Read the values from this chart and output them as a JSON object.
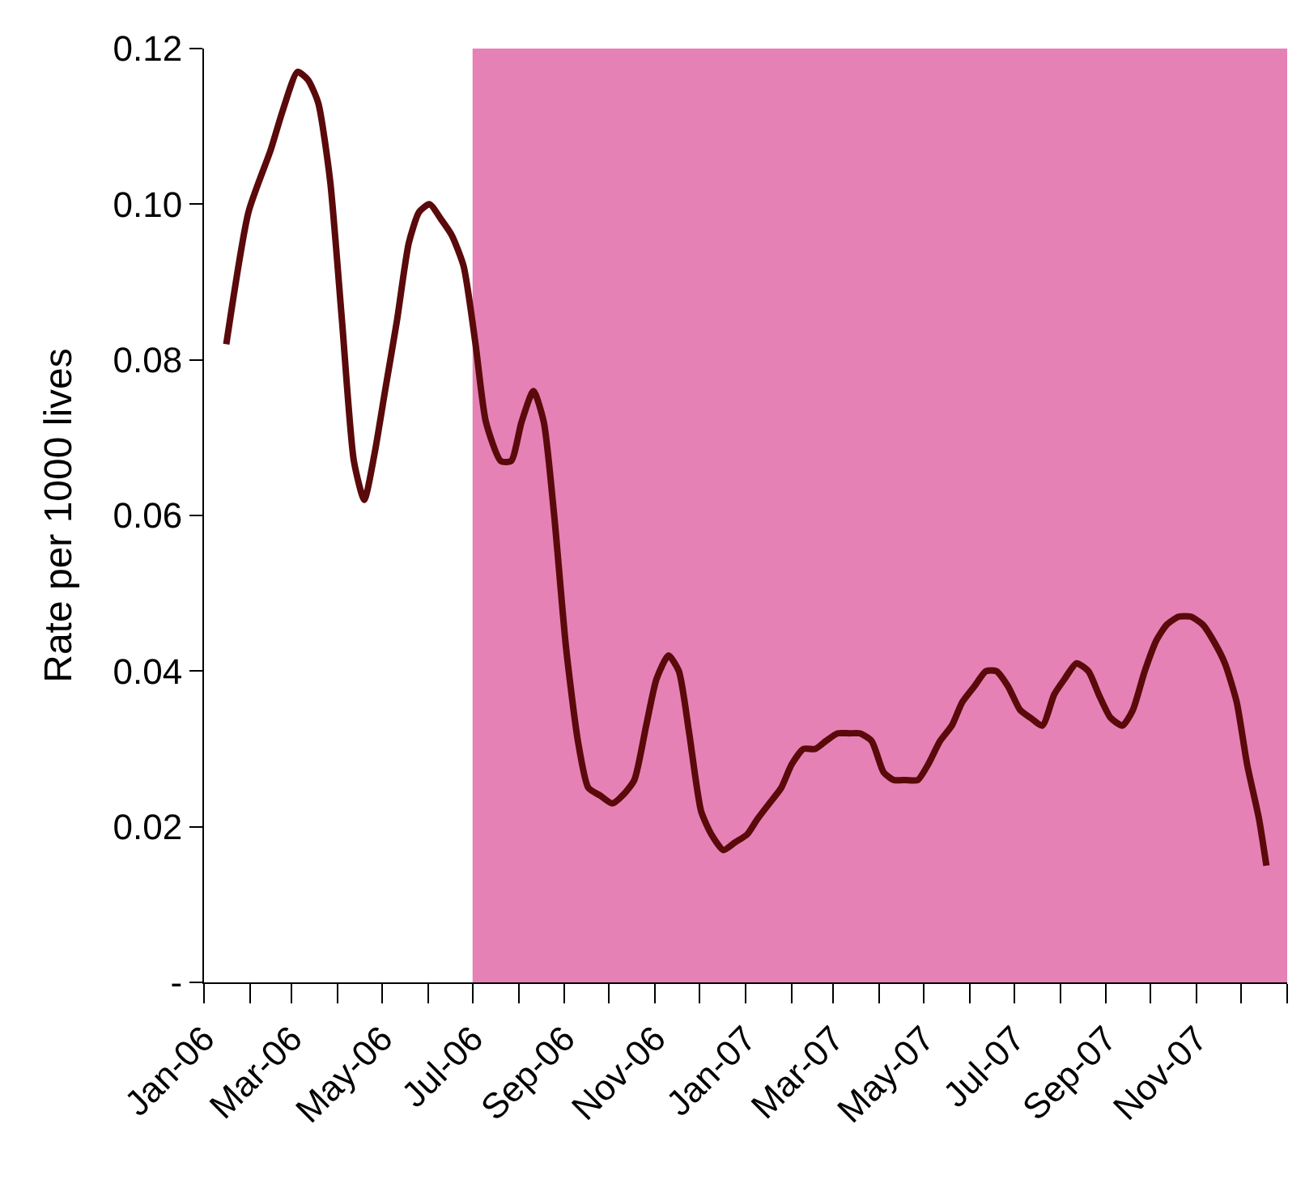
{
  "chart_data": {
    "type": "line",
    "ylabel": "Rate per 1000 lives",
    "x": [
      "2006-01-16",
      "2006-01-31",
      "2006-02-15",
      "2006-02-23",
      "2006-03-05",
      "2006-03-12",
      "2006-03-19",
      "2006-03-27",
      "2006-04-04",
      "2006-04-12",
      "2006-04-19",
      "2006-04-26",
      "2006-05-03",
      "2006-05-11",
      "2006-05-19",
      "2006-05-26",
      "2006-06-02",
      "2006-06-10",
      "2006-06-17",
      "2006-06-25",
      "2006-07-03",
      "2006-07-10",
      "2006-07-20",
      "2006-07-27",
      "2006-08-03",
      "2006-08-11",
      "2006-08-18",
      "2006-08-25",
      "2006-09-02",
      "2006-09-10",
      "2006-09-17",
      "2006-09-25",
      "2006-10-03",
      "2006-10-10",
      "2006-10-18",
      "2006-10-26",
      "2006-11-02",
      "2006-11-10",
      "2006-11-17",
      "2006-11-24",
      "2006-12-02",
      "2006-12-09",
      "2006-12-17",
      "2006-12-25",
      "2007-01-02",
      "2007-01-09",
      "2007-01-17",
      "2007-01-25",
      "2007-02-01",
      "2007-02-09",
      "2007-02-17",
      "2007-02-24",
      "2007-03-04",
      "2007-03-12",
      "2007-03-19",
      "2007-03-27",
      "2007-04-04",
      "2007-04-11",
      "2007-04-19",
      "2007-04-27",
      "2007-05-04",
      "2007-05-12",
      "2007-05-20",
      "2007-05-27",
      "2007-06-04",
      "2007-06-12",
      "2007-06-19",
      "2007-06-27",
      "2007-07-05",
      "2007-07-12",
      "2007-07-20",
      "2007-07-28",
      "2007-08-04",
      "2007-08-12",
      "2007-08-20",
      "2007-08-27",
      "2007-09-04",
      "2007-09-12",
      "2007-09-19",
      "2007-09-27",
      "2007-10-05",
      "2007-10-12",
      "2007-10-20",
      "2007-10-28",
      "2007-11-05",
      "2007-11-12",
      "2007-11-20",
      "2007-11-28",
      "2007-12-05",
      "2007-12-13",
      "2007-12-18"
    ],
    "series": [
      {
        "color": "#5a0a0a",
        "values": [
          0.082,
          0.099,
          0.107,
          0.112,
          0.117,
          0.116,
          0.113,
          0.103,
          0.085,
          0.067,
          0.062,
          0.068,
          0.076,
          0.085,
          0.095,
          0.099,
          0.1,
          0.098,
          0.096,
          0.092,
          0.082,
          0.072,
          0.067,
          0.067,
          0.072,
          0.076,
          0.072,
          0.06,
          0.043,
          0.031,
          0.025,
          0.024,
          0.023,
          0.024,
          0.026,
          0.033,
          0.039,
          0.042,
          0.04,
          0.032,
          0.022,
          0.019,
          0.017,
          0.018,
          0.019,
          0.021,
          0.023,
          0.025,
          0.028,
          0.03,
          0.03,
          0.031,
          0.032,
          0.032,
          0.032,
          0.031,
          0.027,
          0.026,
          0.026,
          0.026,
          0.028,
          0.031,
          0.033,
          0.036,
          0.038,
          0.04,
          0.04,
          0.038,
          0.035,
          0.034,
          0.033,
          0.037,
          0.039,
          0.041,
          0.04,
          0.037,
          0.034,
          0.033,
          0.035,
          0.04,
          0.044,
          0.046,
          0.047,
          0.047,
          0.046,
          0.044,
          0.041,
          0.036,
          0.028,
          0.021,
          0.015
        ]
      }
    ],
    "ylim": [
      0,
      0.12
    ],
    "yticks": [
      {
        "value": 0,
        "label": "-"
      },
      0.02,
      0.04,
      0.06,
      0.08,
      {
        "value": 0.1,
        "label": "0.10"
      },
      0.12
    ],
    "xlim": [
      "2006-01-01",
      "2008-01-01"
    ],
    "xticks": [
      {
        "value": "2006-01-01",
        "label": "Jan-06"
      },
      {
        "value": "2006-02-01",
        "label": null
      },
      {
        "value": "2006-03-01",
        "label": "Mar-06"
      },
      {
        "value": "2006-04-01",
        "label": null
      },
      {
        "value": "2006-05-01",
        "label": "May-06"
      },
      {
        "value": "2006-06-01",
        "label": null
      },
      {
        "value": "2006-07-01",
        "label": "Jul-06"
      },
      {
        "value": "2006-08-01",
        "label": null
      },
      {
        "value": "2006-09-01",
        "label": "Sep-06"
      },
      {
        "value": "2006-10-01",
        "label": null
      },
      {
        "value": "2006-11-01",
        "label": "Nov-06"
      },
      {
        "value": "2006-12-01",
        "label": null
      },
      {
        "value": "2007-01-01",
        "label": "Jan-07"
      },
      {
        "value": "2007-02-01",
        "label": null
      },
      {
        "value": "2007-03-01",
        "label": "Mar-07"
      },
      {
        "value": "2007-04-01",
        "label": null
      },
      {
        "value": "2007-05-01",
        "label": "May-07"
      },
      {
        "value": "2007-06-01",
        "label": null
      },
      {
        "value": "2007-07-01",
        "label": "Jul-07"
      },
      {
        "value": "2007-08-01",
        "label": null
      },
      {
        "value": "2007-09-01",
        "label": "Sep-07"
      },
      {
        "value": "2007-10-01",
        "label": null
      },
      {
        "value": "2007-11-01",
        "label": "Nov-07"
      },
      {
        "value": "2007-12-01",
        "label": null
      },
      {
        "value": "2008-01-01",
        "label": null
      }
    ],
    "bands": [
      {
        "axis": "x",
        "from": "2006-07-01",
        "to": "2008-01-01",
        "color": "#e681b6"
      }
    ],
    "grid": false,
    "marker": "none",
    "line_style": "solid"
  }
}
